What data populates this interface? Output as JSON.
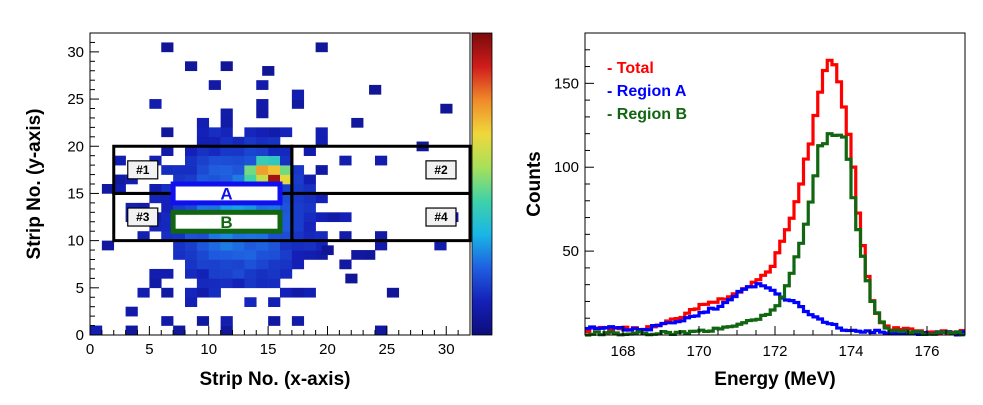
{
  "chart_data": [
    {
      "type": "heatmap",
      "xlabel": "Strip No. (x-axis)",
      "ylabel": "Strip No. (y-axis)",
      "xlim": [
        0,
        32
      ],
      "ylim": [
        0,
        32
      ],
      "x_ticks": [
        "0",
        "5",
        "10",
        "15",
        "20",
        "25",
        "30"
      ],
      "y_ticks": [
        "0",
        "5",
        "10",
        "15",
        "20",
        "25",
        "30"
      ],
      "colorbar": {
        "scale": "log",
        "colors": [
          "#0d0d7a",
          "#1420b8",
          "#1f5fe0",
          "#19b6e6",
          "#3fd2a8",
          "#a8e05a",
          "#f0d83a",
          "#f08a2a",
          "#d01c1c",
          "#7a0a0a"
        ]
      },
      "hot_cells": [
        {
          "x": 15,
          "y": 16,
          "level": 0.95
        },
        {
          "x": 14,
          "y": 17,
          "level": 0.75
        },
        {
          "x": 15,
          "y": 17,
          "level": 0.7
        },
        {
          "x": 16,
          "y": 16,
          "level": 0.65
        },
        {
          "x": 14,
          "y": 16,
          "level": 0.6
        },
        {
          "x": 13,
          "y": 17,
          "level": 0.5
        },
        {
          "x": 16,
          "y": 17,
          "level": 0.5
        },
        {
          "x": 13,
          "y": 16,
          "level": 0.45
        },
        {
          "x": 14,
          "y": 18,
          "level": 0.42
        },
        {
          "x": 15,
          "y": 18,
          "level": 0.4
        }
      ],
      "regions": [
        {
          "label": "#1",
          "x": [
            2,
            17
          ],
          "y": [
            15,
            20
          ]
        },
        {
          "label": "#2",
          "x": [
            17,
            32
          ],
          "y": [
            15,
            20
          ]
        },
        {
          "label": "#3",
          "x": [
            2,
            17
          ],
          "y": [
            10,
            15
          ]
        },
        {
          "label": "#4",
          "x": [
            17,
            32
          ],
          "y": [
            10,
            15
          ]
        }
      ],
      "gates": [
        {
          "label": "A",
          "color": "#1010ee",
          "x": [
            7,
            16
          ],
          "y": [
            14,
            16
          ]
        },
        {
          "label": "B",
          "color": "#116611",
          "x": [
            7,
            16
          ],
          "y": [
            11,
            13
          ]
        }
      ]
    },
    {
      "type": "line",
      "xlabel": "Energy (MeV)",
      "ylabel": "Counts",
      "xlim": [
        167,
        177
      ],
      "ylim": [
        0,
        180
      ],
      "x_ticks": [
        "168",
        "170",
        "172",
        "174",
        "176"
      ],
      "y_ticks": [
        "50",
        "100",
        "150"
      ],
      "legend_placement": "top-left",
      "series": [
        {
          "name": "- Total",
          "color": "#ff0000",
          "x": [
            167.0,
            167.5,
            168.0,
            168.5,
            169.0,
            169.5,
            170.0,
            170.5,
            171.0,
            171.25,
            171.5,
            171.75,
            172.0,
            172.25,
            172.5,
            172.75,
            173.0,
            173.25,
            173.5,
            173.75,
            174.0,
            174.25,
            174.5,
            174.75,
            175.0,
            175.5,
            176.0,
            176.5,
            177.0
          ],
          "values": [
            3,
            4,
            4,
            3,
            6,
            10,
            17,
            20,
            25,
            28,
            32,
            35,
            45,
            58,
            75,
            95,
            125,
            150,
            160,
            150,
            110,
            60,
            25,
            8,
            4,
            3,
            2,
            2,
            2
          ]
        },
        {
          "name": "- Region A",
          "color": "#0000ff",
          "x": [
            167.0,
            167.5,
            168.0,
            168.5,
            169.0,
            169.5,
            170.0,
            170.5,
            171.0,
            171.25,
            171.5,
            171.75,
            172.0,
            172.25,
            172.5,
            172.75,
            173.0,
            173.25,
            173.5,
            173.75,
            174.0,
            174.5,
            175.0,
            175.5,
            176.0,
            177.0
          ],
          "values": [
            5,
            4,
            4,
            3,
            6,
            8,
            12,
            17,
            24,
            28,
            30,
            28,
            25,
            22,
            20,
            16,
            12,
            8,
            6,
            4,
            3,
            2,
            2,
            1,
            1,
            1
          ]
        },
        {
          "name": "- Region B",
          "color": "#116611",
          "x": [
            167.0,
            168.0,
            169.0,
            170.0,
            170.5,
            171.0,
            171.5,
            172.0,
            172.25,
            172.5,
            172.75,
            173.0,
            173.25,
            173.5,
            173.75,
            174.0,
            174.25,
            174.5,
            174.75,
            175.0,
            175.5,
            176.0,
            177.0
          ],
          "values": [
            1,
            1,
            1,
            2,
            4,
            6,
            9,
            15,
            25,
            40,
            60,
            90,
            115,
            125,
            120,
            95,
            55,
            25,
            8,
            3,
            2,
            1,
            1
          ]
        }
      ]
    }
  ]
}
